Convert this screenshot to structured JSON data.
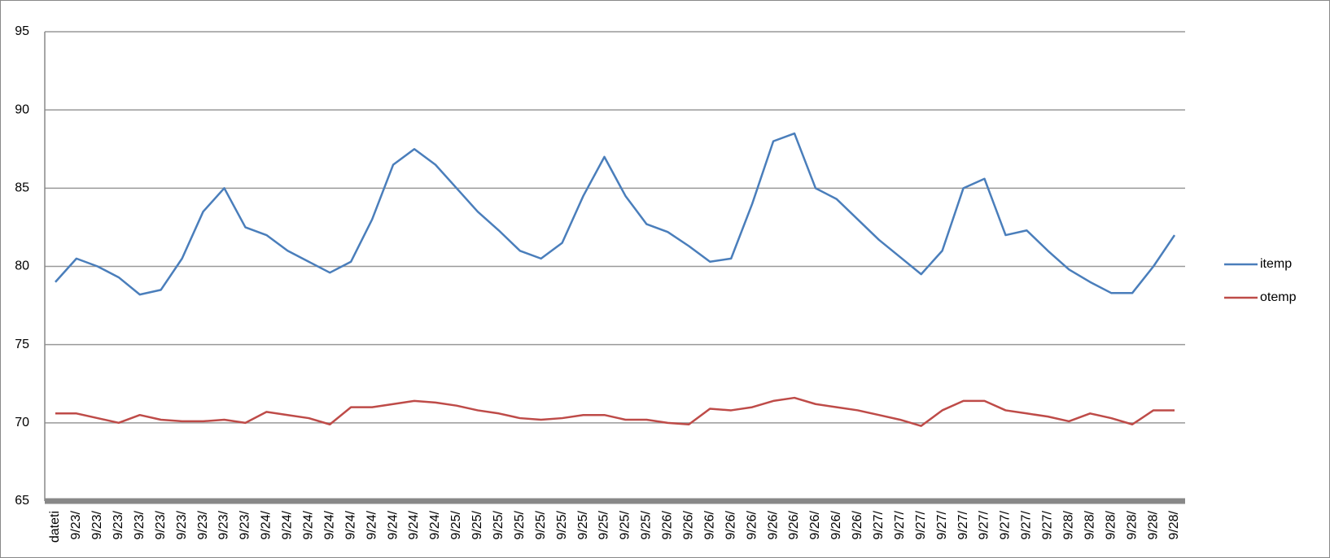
{
  "chart_data": {
    "type": "line",
    "categories": [
      "dateti",
      "9/23/",
      "9/23/",
      "9/23/",
      "9/23/",
      "9/23/",
      "9/23/",
      "9/23/",
      "9/23/",
      "9/23/",
      "9/24/",
      "9/24/",
      "9/24/",
      "9/24/",
      "9/24/",
      "9/24/",
      "9/24/",
      "9/24/",
      "9/24/",
      "9/25/",
      "9/25/",
      "9/25/",
      "9/25/",
      "9/25/",
      "9/25/",
      "9/25/",
      "9/25/",
      "9/25/",
      "9/25/",
      "9/26/",
      "9/26/",
      "9/26/",
      "9/26/",
      "9/26/",
      "9/26/",
      "9/26/",
      "9/26/",
      "9/26/",
      "9/26/",
      "9/27/",
      "9/27/",
      "9/27/",
      "9/27/",
      "9/27/",
      "9/27/",
      "9/27/",
      "9/27/",
      "9/27/",
      "9/28/",
      "9/28/",
      "9/28/",
      "9/28/",
      "9/28/",
      "9/28/"
    ],
    "series": [
      {
        "name": "itemp",
        "color": "#4a7ebb",
        "values": [
          79,
          80.5,
          80,
          79.3,
          78.2,
          78.5,
          80.5,
          83.5,
          85,
          82.5,
          82,
          81,
          80.3,
          79.6,
          80.3,
          83,
          86.5,
          87.5,
          86.5,
          85,
          83.5,
          82.3,
          81,
          80.5,
          81.5,
          84.5,
          87,
          84.5,
          82.7,
          82.2,
          81.3,
          80.3,
          80.5,
          84,
          88,
          88.5,
          85,
          84.3,
          83,
          81.7,
          80.6,
          79.5,
          81,
          85,
          85.6,
          82,
          82.3,
          81,
          79.8,
          79,
          78.3,
          78.3,
          80,
          82
        ]
      },
      {
        "name": "otemp",
        "color": "#be4b48",
        "values": [
          70.6,
          70.6,
          70.3,
          70,
          70.5,
          70.2,
          70.1,
          70.1,
          70.2,
          70,
          70.7,
          70.5,
          70.3,
          69.9,
          71,
          71,
          71.2,
          71.4,
          71.3,
          71.1,
          70.8,
          70.6,
          70.3,
          70.2,
          70.3,
          70.5,
          70.5,
          70.2,
          70.2,
          70,
          69.9,
          70.9,
          70.8,
          71,
          71.4,
          71.6,
          71.2,
          71,
          70.8,
          70.5,
          70.2,
          69.8,
          70.8,
          71.4,
          71.4,
          70.8,
          70.6,
          70.4,
          70.1,
          70.6,
          70.3,
          69.9,
          70.8,
          70.8
        ]
      }
    ],
    "ylim": [
      65,
      95
    ],
    "yticks": [
      65,
      70,
      75,
      80,
      85,
      90,
      95
    ],
    "grid": true,
    "legend": "right"
  }
}
